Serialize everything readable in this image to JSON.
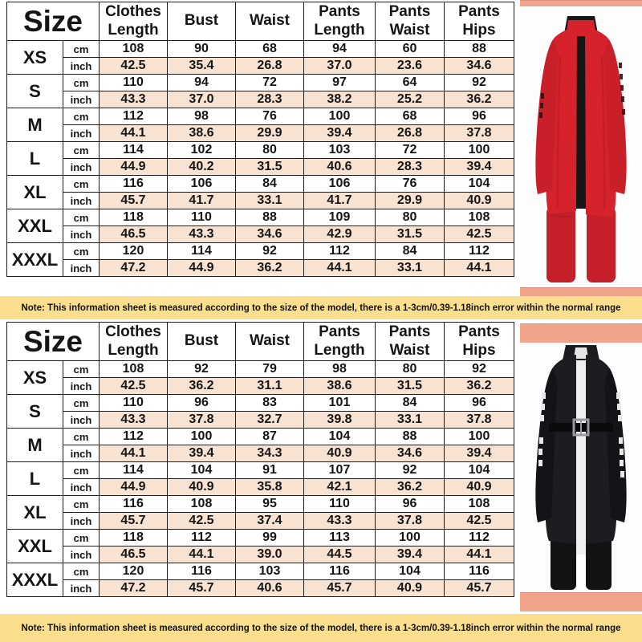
{
  "palette": {
    "inch_row_bg": "#F8E3D2",
    "note_bg": "#FBDF8F",
    "photo_strip": "#F0A48A",
    "table_border": "#1E1E1E",
    "red_coat": "#D5222B",
    "black_coat": "#1C1C21"
  },
  "tables": [
    {
      "size_header": "Size",
      "columns": [
        "Clothes Length",
        "Bust",
        "Waist",
        "Pants Length",
        "Pants Waist",
        "Pants Hips"
      ],
      "unit_cm": "cm",
      "unit_inch": "inch",
      "rows": [
        {
          "size": "XS",
          "cm": [
            "108",
            "90",
            "68",
            "94",
            "60",
            "88"
          ],
          "inch": [
            "42.5",
            "35.4",
            "26.8",
            "37.0",
            "23.6",
            "34.6"
          ]
        },
        {
          "size": "S",
          "cm": [
            "110",
            "94",
            "72",
            "97",
            "64",
            "92"
          ],
          "inch": [
            "43.3",
            "37.0",
            "28.3",
            "38.2",
            "25.2",
            "36.2"
          ]
        },
        {
          "size": "M",
          "cm": [
            "112",
            "98",
            "76",
            "100",
            "68",
            "96"
          ],
          "inch": [
            "44.1",
            "38.6",
            "29.9",
            "39.4",
            "26.8",
            "37.8"
          ]
        },
        {
          "size": "L",
          "cm": [
            "114",
            "102",
            "80",
            "103",
            "72",
            "100"
          ],
          "inch": [
            "44.9",
            "40.2",
            "31.5",
            "40.6",
            "28.3",
            "39.4"
          ]
        },
        {
          "size": "XL",
          "cm": [
            "116",
            "106",
            "84",
            "106",
            "76",
            "104"
          ],
          "inch": [
            "45.7",
            "41.7",
            "33.1",
            "41.7",
            "29.9",
            "40.9"
          ]
        },
        {
          "size": "XXL",
          "cm": [
            "118",
            "110",
            "88",
            "109",
            "80",
            "108"
          ],
          "inch": [
            "46.5",
            "43.3",
            "34.6",
            "42.9",
            "31.5",
            "42.5"
          ]
        },
        {
          "size": "XXXL",
          "cm": [
            "120",
            "114",
            "92",
            "112",
            "84",
            "112"
          ],
          "inch": [
            "47.2",
            "44.9",
            "36.2",
            "44.1",
            "33.1",
            "44.1"
          ]
        }
      ],
      "note": "Note: This information sheet is measured according to the size of the model, there is a 1-3cm/0.39-1.18inch error within the normal range"
    },
    {
      "size_header": "Size",
      "columns": [
        "Clothes Length",
        "Bust",
        "Waist",
        "Pants Length",
        "Pants Waist",
        "Pants Hips"
      ],
      "unit_cm": "cm",
      "unit_inch": "inch",
      "rows": [
        {
          "size": "XS",
          "cm": [
            "108",
            "92",
            "79",
            "98",
            "80",
            "92"
          ],
          "inch": [
            "42.5",
            "36.2",
            "31.1",
            "38.6",
            "31.5",
            "36.2"
          ]
        },
        {
          "size": "S",
          "cm": [
            "110",
            "96",
            "83",
            "101",
            "84",
            "96"
          ],
          "inch": [
            "43.3",
            "37.8",
            "32.7",
            "39.8",
            "33.1",
            "37.8"
          ]
        },
        {
          "size": "M",
          "cm": [
            "112",
            "100",
            "87",
            "104",
            "88",
            "100"
          ],
          "inch": [
            "44.1",
            "39.4",
            "34.3",
            "40.9",
            "34.6",
            "39.4"
          ]
        },
        {
          "size": "L",
          "cm": [
            "114",
            "104",
            "91",
            "107",
            "92",
            "104"
          ],
          "inch": [
            "44.9",
            "40.9",
            "35.8",
            "42.1",
            "36.2",
            "40.9"
          ]
        },
        {
          "size": "XL",
          "cm": [
            "116",
            "108",
            "95",
            "110",
            "96",
            "108"
          ],
          "inch": [
            "45.7",
            "42.5",
            "37.4",
            "43.3",
            "37.8",
            "42.5"
          ]
        },
        {
          "size": "XXL",
          "cm": [
            "118",
            "112",
            "99",
            "113",
            "100",
            "112"
          ],
          "inch": [
            "46.5",
            "44.1",
            "39.0",
            "44.5",
            "39.4",
            "44.1"
          ]
        },
        {
          "size": "XXXL",
          "cm": [
            "120",
            "116",
            "103",
            "116",
            "104",
            "116"
          ],
          "inch": [
            "47.2",
            "45.7",
            "40.6",
            "45.7",
            "40.9",
            "45.7"
          ]
        }
      ],
      "note": "Note: This information sheet is measured according to the size of the model, there is a 1-3cm/0.39-1.18inch error within the normal range"
    }
  ]
}
